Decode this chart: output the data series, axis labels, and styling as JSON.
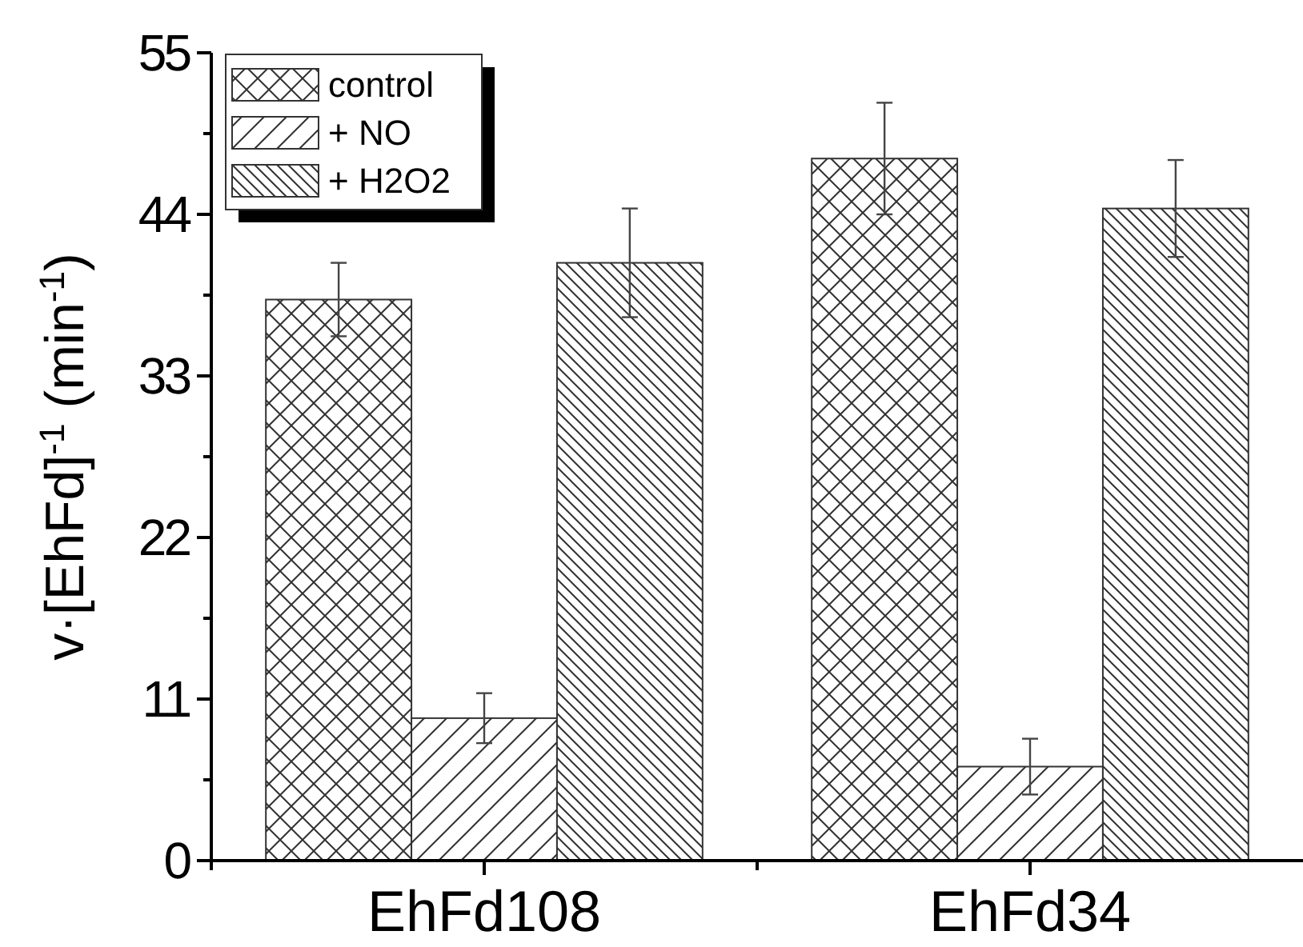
{
  "chart_data": {
    "type": "bar",
    "ylabel": "v·[EhFd]$^{-1}$ (min$^{-1}$)",
    "categories": [
      "EhFd108",
      "EhFd34"
    ],
    "series": [
      {
        "name": "control",
        "color": "#333333",
        "values": [
          38.2,
          47.8
        ],
        "errors": [
          2.5,
          3.8
        ]
      },
      {
        "name": "+ NO",
        "color": "#333333",
        "values": [
          9.7,
          6.4
        ],
        "errors": [
          1.7,
          1.9
        ]
      },
      {
        "name": "+ H2O2",
        "color": "#333333",
        "values": [
          40.7,
          44.4
        ],
        "errors": [
          3.7,
          3.3
        ]
      }
    ],
    "ylim": [
      0,
      55
    ],
    "yticks": [
      0,
      {
        "value": 5.5,
        "label": null
      },
      11,
      {
        "value": 16.5,
        "label": null
      },
      22,
      {
        "value": 27.5,
        "label": null
      },
      33,
      {
        "value": 38.5,
        "label": null
      },
      44,
      {
        "value": 49.5,
        "label": null
      },
      55
    ],
    "legend": "top left",
    "grid": false
  }
}
